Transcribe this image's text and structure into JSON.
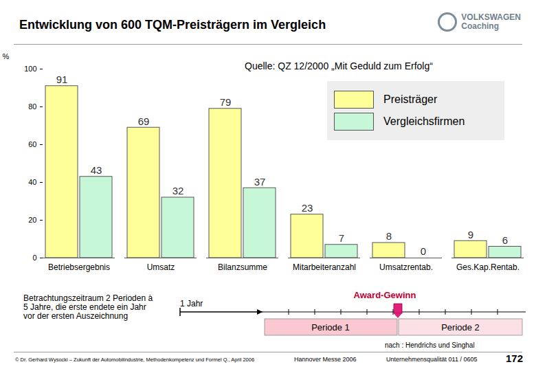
{
  "header": {
    "logo": [
      "VOLKSWAGEN",
      "Coaching"
    ]
  },
  "chart_data": {
    "type": "bar",
    "title": "Entwicklung von 600 TQM-Preisträgern im Vergleich",
    "subtitle": "Quelle: QZ 12/2000 „Mit Geduld zum Erfolg“",
    "y_label": "%",
    "categories": [
      "Betriebsergebnis",
      "Umsatz",
      "Bilanzsumme",
      "Mitarbeiteranzahl",
      "Umsatzrentab.",
      "Ges.Kap.Rentab."
    ],
    "series": [
      {
        "name": "Preisträger",
        "color": "#ffff99",
        "values": [
          91,
          69,
          79,
          23,
          8,
          9
        ]
      },
      {
        "name": "Vergleichsfirmen",
        "color": "#c6f7d6",
        "values": [
          43,
          32,
          37,
          7,
          0,
          6
        ]
      }
    ],
    "ylim": [
      0,
      100
    ],
    "yticks": [
      0,
      20,
      40,
      60,
      80,
      100
    ],
    "data_labels": true,
    "legend": "top-right",
    "grid": false
  },
  "timeline": {
    "description": "Betrachtungszeitraum 2 Perioden à 5 Jahre, die erste endete ein Jahr vor der ersten Auszeichnung",
    "gap_label": "1 Jahr",
    "marker_label": "Award-Gewinn",
    "periods": [
      "Periode 1",
      "Periode 2"
    ]
  },
  "footer": {
    "credit": "nach : Hendrichs und Singhal",
    "copyright": "© Dr. Gerhard Wysocki – Zukunft der Automobilindustrie, Methodenkompetenz und Formel Q., April 2006",
    "event": "Hannover Messe 2006",
    "reference": "Unternehmensqualität 011 / 0605",
    "page": "172"
  }
}
